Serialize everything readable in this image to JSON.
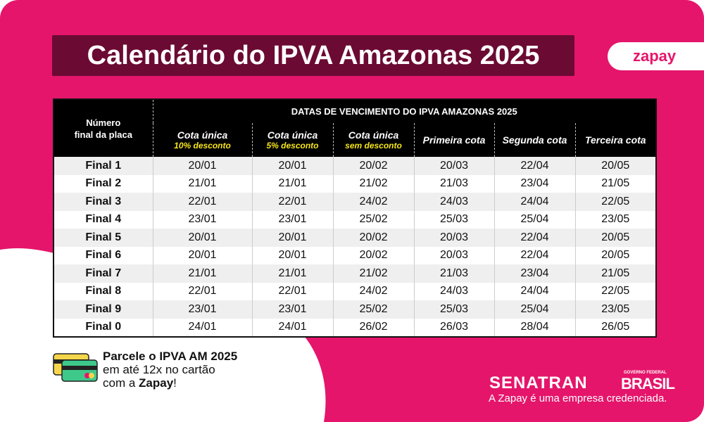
{
  "header": {
    "title": "Calendário do IPVA Amazonas 2025",
    "logo": "zapay"
  },
  "table": {
    "row_header_top": "Número",
    "row_header_bottom": "final da placa",
    "group_title": "DATAS DE VENCIMENTO DO IPVA AMAZONAS 2025",
    "columns": [
      {
        "title": "Cota única",
        "note": "10% desconto"
      },
      {
        "title": "Cota única",
        "note": "5% desconto"
      },
      {
        "title": "Cota única",
        "note": "sem desconto"
      },
      {
        "title": "Primeira cota"
      },
      {
        "title": "Segunda cota"
      },
      {
        "title": "Terceira cota"
      }
    ],
    "rows": [
      [
        "Final 1",
        "20/01",
        "20/01",
        "20/02",
        "20/03",
        "22/04",
        "20/05"
      ],
      [
        "Final 2",
        "21/01",
        "21/01",
        "21/02",
        "21/03",
        "23/04",
        "21/05"
      ],
      [
        "Final 3",
        "22/01",
        "22/01",
        "24/02",
        "24/03",
        "24/04",
        "22/05"
      ],
      [
        "Final 4",
        "23/01",
        "23/01",
        "25/02",
        "25/03",
        "25/04",
        "23/05"
      ],
      [
        "Final 5",
        "20/01",
        "20/01",
        "20/02",
        "20/03",
        "22/04",
        "20/05"
      ],
      [
        "Final 6",
        "20/01",
        "20/01",
        "20/02",
        "20/03",
        "22/04",
        "20/05"
      ],
      [
        "Final 7",
        "21/01",
        "21/01",
        "21/02",
        "21/03",
        "23/04",
        "21/05"
      ],
      [
        "Final 8",
        "22/01",
        "22/01",
        "24/02",
        "24/03",
        "24/04",
        "22/05"
      ],
      [
        "Final 9",
        "23/01",
        "23/01",
        "25/02",
        "25/03",
        "25/04",
        "23/05"
      ],
      [
        "Final 0",
        "24/01",
        "24/01",
        "26/02",
        "26/03",
        "28/04",
        "26/05"
      ]
    ]
  },
  "promo": {
    "line1": "Parcele o IPVA AM 2025",
    "line2": "em até 12x no cartão",
    "line3_start": "com a ",
    "line3_brand": "Zapay",
    "line3_end": "!"
  },
  "footer": {
    "senatran": "SENATRAN",
    "gov_small": "GOVERNO FEDERAL",
    "gov_big": "BRASIL",
    "note": "A Zapay é uma empresa credenciada."
  }
}
